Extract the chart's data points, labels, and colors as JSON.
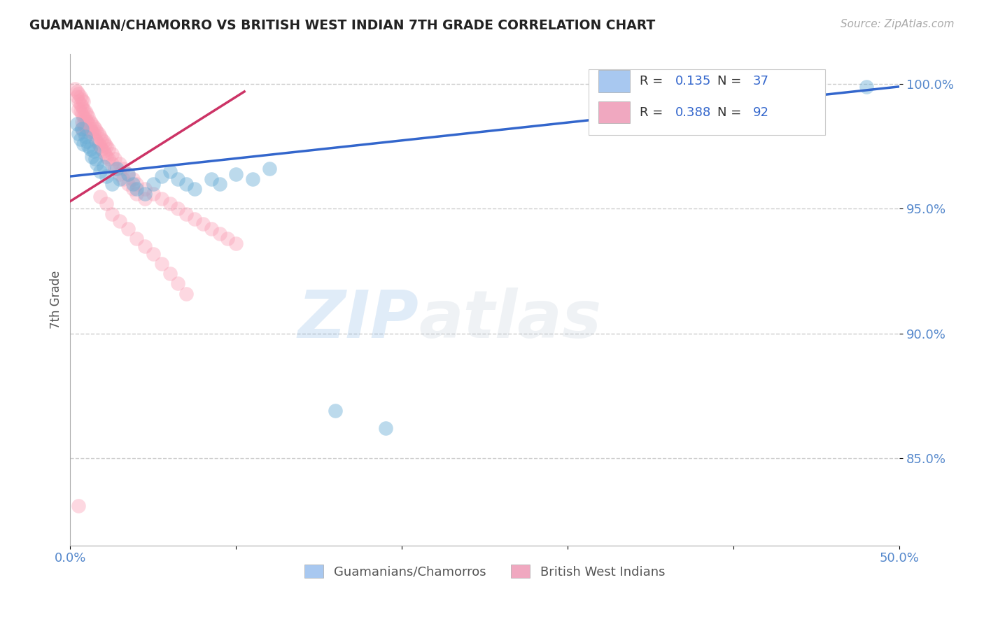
{
  "title": "GUAMANIAN/CHAMORRO VS BRITISH WEST INDIAN 7TH GRADE CORRELATION CHART",
  "source": "Source: ZipAtlas.com",
  "ylabel": "7th Grade",
  "xlim": [
    0.0,
    0.5
  ],
  "ylim": [
    0.815,
    1.012
  ],
  "xticks": [
    0.0,
    0.1,
    0.2,
    0.3,
    0.4,
    0.5
  ],
  "xticklabels": [
    "0.0%",
    "",
    "",
    "",
    "",
    "50.0%"
  ],
  "yticks": [
    0.85,
    0.9,
    0.95,
    1.0
  ],
  "yticklabels": [
    "85.0%",
    "90.0%",
    "95.0%",
    "100.0%"
  ],
  "blue_scatter": [
    [
      0.004,
      0.984
    ],
    [
      0.005,
      0.98
    ],
    [
      0.006,
      0.978
    ],
    [
      0.007,
      0.982
    ],
    [
      0.008,
      0.976
    ],
    [
      0.009,
      0.979
    ],
    [
      0.01,
      0.977
    ],
    [
      0.011,
      0.975
    ],
    [
      0.012,
      0.974
    ],
    [
      0.013,
      0.971
    ],
    [
      0.014,
      0.973
    ],
    [
      0.015,
      0.97
    ],
    [
      0.016,
      0.968
    ],
    [
      0.018,
      0.965
    ],
    [
      0.02,
      0.967
    ],
    [
      0.022,
      0.963
    ],
    [
      0.025,
      0.96
    ],
    [
      0.028,
      0.966
    ],
    [
      0.03,
      0.962
    ],
    [
      0.035,
      0.964
    ],
    [
      0.038,
      0.96
    ],
    [
      0.04,
      0.958
    ],
    [
      0.045,
      0.956
    ],
    [
      0.05,
      0.96
    ],
    [
      0.055,
      0.963
    ],
    [
      0.06,
      0.965
    ],
    [
      0.065,
      0.962
    ],
    [
      0.07,
      0.96
    ],
    [
      0.075,
      0.958
    ],
    [
      0.085,
      0.962
    ],
    [
      0.09,
      0.96
    ],
    [
      0.1,
      0.964
    ],
    [
      0.11,
      0.962
    ],
    [
      0.12,
      0.966
    ],
    [
      0.16,
      0.869
    ],
    [
      0.19,
      0.862
    ],
    [
      0.48,
      0.999
    ]
  ],
  "pink_scatter": [
    [
      0.003,
      0.998
    ],
    [
      0.004,
      0.997
    ],
    [
      0.004,
      0.995
    ],
    [
      0.005,
      0.996
    ],
    [
      0.005,
      0.993
    ],
    [
      0.005,
      0.99
    ],
    [
      0.006,
      0.995
    ],
    [
      0.006,
      0.992
    ],
    [
      0.006,
      0.989
    ],
    [
      0.007,
      0.994
    ],
    [
      0.007,
      0.991
    ],
    [
      0.007,
      0.988
    ],
    [
      0.007,
      0.985
    ],
    [
      0.007,
      0.982
    ],
    [
      0.008,
      0.993
    ],
    [
      0.008,
      0.99
    ],
    [
      0.008,
      0.987
    ],
    [
      0.008,
      0.984
    ],
    [
      0.008,
      0.981
    ],
    [
      0.009,
      0.989
    ],
    [
      0.009,
      0.986
    ],
    [
      0.009,
      0.983
    ],
    [
      0.01,
      0.988
    ],
    [
      0.01,
      0.985
    ],
    [
      0.01,
      0.982
    ],
    [
      0.011,
      0.987
    ],
    [
      0.011,
      0.984
    ],
    [
      0.011,
      0.981
    ],
    [
      0.012,
      0.985
    ],
    [
      0.012,
      0.982
    ],
    [
      0.013,
      0.984
    ],
    [
      0.013,
      0.981
    ],
    [
      0.014,
      0.983
    ],
    [
      0.014,
      0.98
    ],
    [
      0.015,
      0.982
    ],
    [
      0.015,
      0.978
    ],
    [
      0.016,
      0.981
    ],
    [
      0.016,
      0.977
    ],
    [
      0.017,
      0.98
    ],
    [
      0.017,
      0.976
    ],
    [
      0.018,
      0.979
    ],
    [
      0.018,
      0.975
    ],
    [
      0.019,
      0.978
    ],
    [
      0.019,
      0.974
    ],
    [
      0.02,
      0.977
    ],
    [
      0.02,
      0.973
    ],
    [
      0.021,
      0.976
    ],
    [
      0.021,
      0.972
    ],
    [
      0.022,
      0.975
    ],
    [
      0.022,
      0.971
    ],
    [
      0.023,
      0.974
    ],
    [
      0.023,
      0.97
    ],
    [
      0.025,
      0.972
    ],
    [
      0.025,
      0.968
    ],
    [
      0.027,
      0.97
    ],
    [
      0.027,
      0.966
    ],
    [
      0.03,
      0.968
    ],
    [
      0.03,
      0.964
    ],
    [
      0.032,
      0.966
    ],
    [
      0.032,
      0.962
    ],
    [
      0.035,
      0.964
    ],
    [
      0.035,
      0.96
    ],
    [
      0.038,
      0.962
    ],
    [
      0.038,
      0.958
    ],
    [
      0.04,
      0.96
    ],
    [
      0.04,
      0.956
    ],
    [
      0.045,
      0.958
    ],
    [
      0.045,
      0.954
    ],
    [
      0.05,
      0.956
    ],
    [
      0.055,
      0.954
    ],
    [
      0.06,
      0.952
    ],
    [
      0.065,
      0.95
    ],
    [
      0.07,
      0.948
    ],
    [
      0.075,
      0.946
    ],
    [
      0.08,
      0.944
    ],
    [
      0.085,
      0.942
    ],
    [
      0.09,
      0.94
    ],
    [
      0.095,
      0.938
    ],
    [
      0.1,
      0.936
    ],
    [
      0.005,
      0.831
    ],
    [
      0.018,
      0.955
    ],
    [
      0.022,
      0.952
    ],
    [
      0.025,
      0.948
    ],
    [
      0.03,
      0.945
    ],
    [
      0.035,
      0.942
    ],
    [
      0.04,
      0.938
    ],
    [
      0.045,
      0.935
    ],
    [
      0.05,
      0.932
    ],
    [
      0.055,
      0.928
    ],
    [
      0.06,
      0.924
    ],
    [
      0.065,
      0.92
    ],
    [
      0.07,
      0.916
    ]
  ],
  "blue_line": {
    "x0": 0.0,
    "y0": 0.963,
    "x1": 0.5,
    "y1": 0.999
  },
  "pink_line": {
    "x0": 0.0,
    "y0": 0.953,
    "x1": 0.105,
    "y1": 0.997
  },
  "blue_color": "#6baed6",
  "pink_color": "#fa9fb5",
  "blue_line_color": "#3366cc",
  "pink_line_color": "#cc3366",
  "watermark_zip": "ZIP",
  "watermark_atlas": "atlas",
  "background_color": "#ffffff",
  "grid_color": "#cccccc",
  "tick_color": "#5588cc",
  "legend_rn_entries": [
    {
      "color": "#a8c8f0",
      "r": "0.135",
      "n": "37"
    },
    {
      "color": "#f0a8c0",
      "r": "0.388",
      "n": "92"
    }
  ],
  "bottom_legend": [
    {
      "label": "Guamanians/Chamorros",
      "color": "#a8c8f0"
    },
    {
      "label": "British West Indians",
      "color": "#f0a8c0"
    }
  ]
}
